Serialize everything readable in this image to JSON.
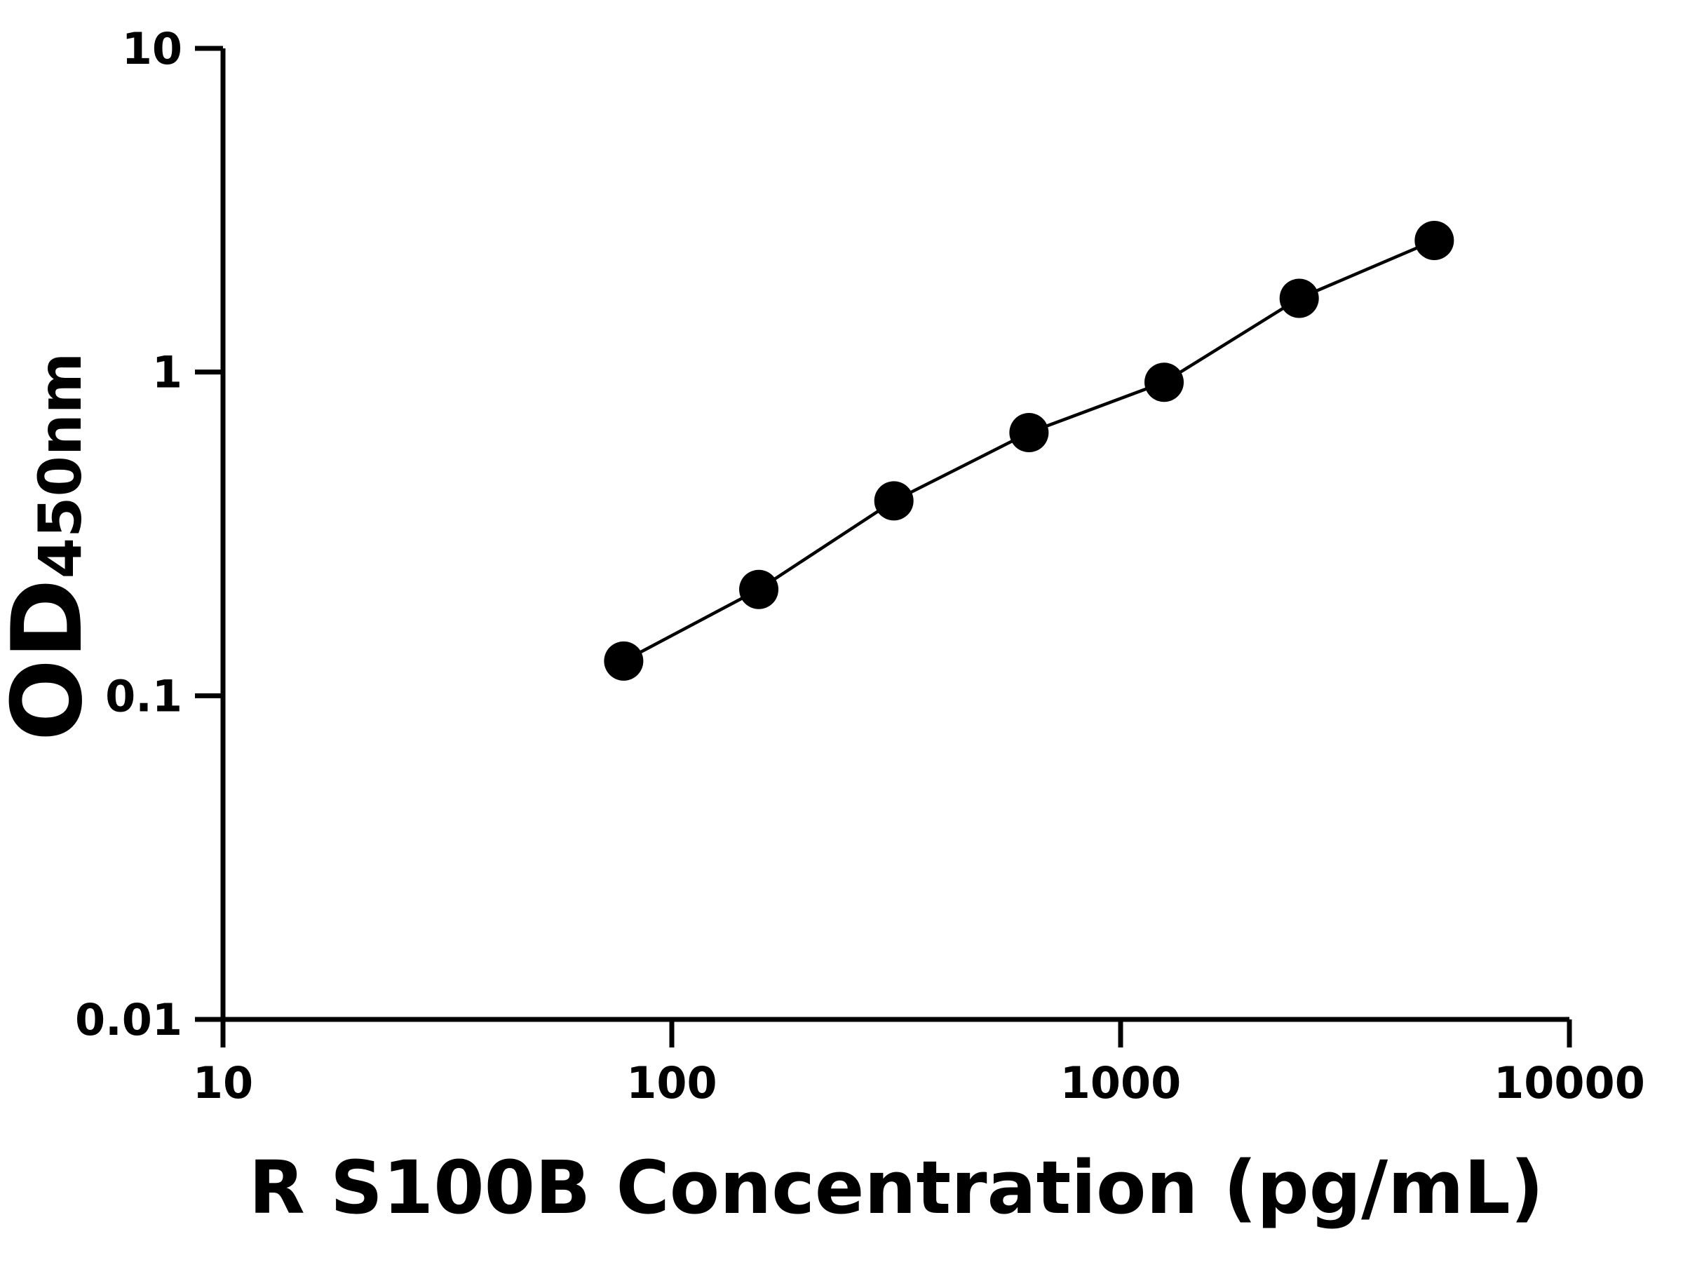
{
  "chart_data": {
    "type": "scatter",
    "x_label": "R S100B Concentration (pg/mL)",
    "y_label": "OD",
    "y_label_subscript": "450nm",
    "x": [
      78.125,
      156.25,
      312.5,
      625,
      1250,
      2500,
      5000
    ],
    "values": [
      0.128,
      0.213,
      0.4,
      0.65,
      0.93,
      1.69,
      2.55
    ],
    "color": "#000000",
    "xlim": [
      10,
      10000
    ],
    "xticks": [
      10,
      100,
      1000,
      10000
    ],
    "ylim": [
      0.01,
      10
    ],
    "yticks": [
      0.01,
      0.1,
      1,
      10
    ],
    "xscale": "log",
    "yscale": "log",
    "grid": false
  }
}
